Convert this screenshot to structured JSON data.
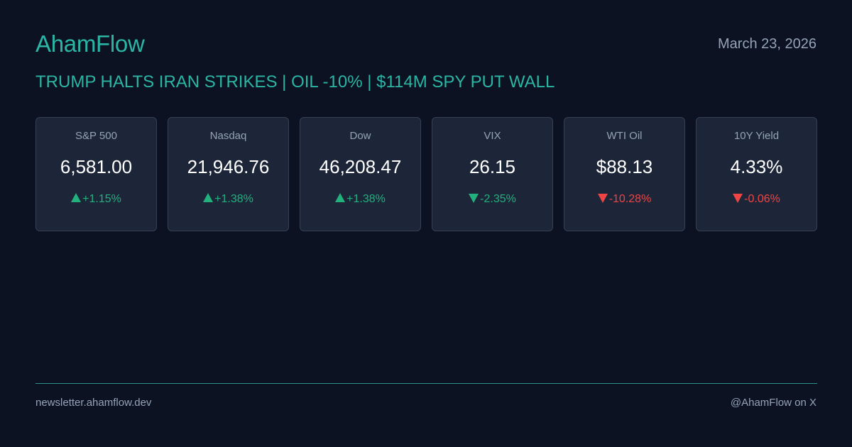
{
  "header": {
    "brand": "AhamFlow",
    "date": "March 23, 2026",
    "headline": "TRUMP HALTS IRAN STRIKES | OIL -10% | $114M SPY PUT WALL"
  },
  "tickers": [
    {
      "name": "S&P 500",
      "value": "6,581.00",
      "change": "+1.15%",
      "direction": "up",
      "icon": "arrow-up-icon"
    },
    {
      "name": "Nasdaq",
      "value": "21,946.76",
      "change": "+1.38%",
      "direction": "up",
      "icon": "arrow-up-icon"
    },
    {
      "name": "Dow",
      "value": "46,208.47",
      "change": "+1.38%",
      "direction": "up",
      "icon": "arrow-up-icon"
    },
    {
      "name": "VIX",
      "value": "26.15",
      "change": "-2.35%",
      "direction": "down",
      "icon": "arrow-down-icon",
      "color_override": "#22b07d"
    },
    {
      "name": "WTI Oil",
      "value": "$88.13",
      "change": "-10.28%",
      "direction": "down",
      "icon": "arrow-down-icon"
    },
    {
      "name": "10Y Yield",
      "value": "4.33%",
      "change": "-0.06%",
      "direction": "down",
      "icon": "arrow-down-icon"
    }
  ],
  "footer": {
    "site": "newsletter.ahamflow.dev",
    "social": "@AhamFlow on X"
  },
  "colors": {
    "background": "#0c1221",
    "accent": "#2bb5a5",
    "card_bg": "#1d2639",
    "positive": "#22b07d",
    "negative": "#ef4444",
    "muted": "#94a3b8"
  }
}
